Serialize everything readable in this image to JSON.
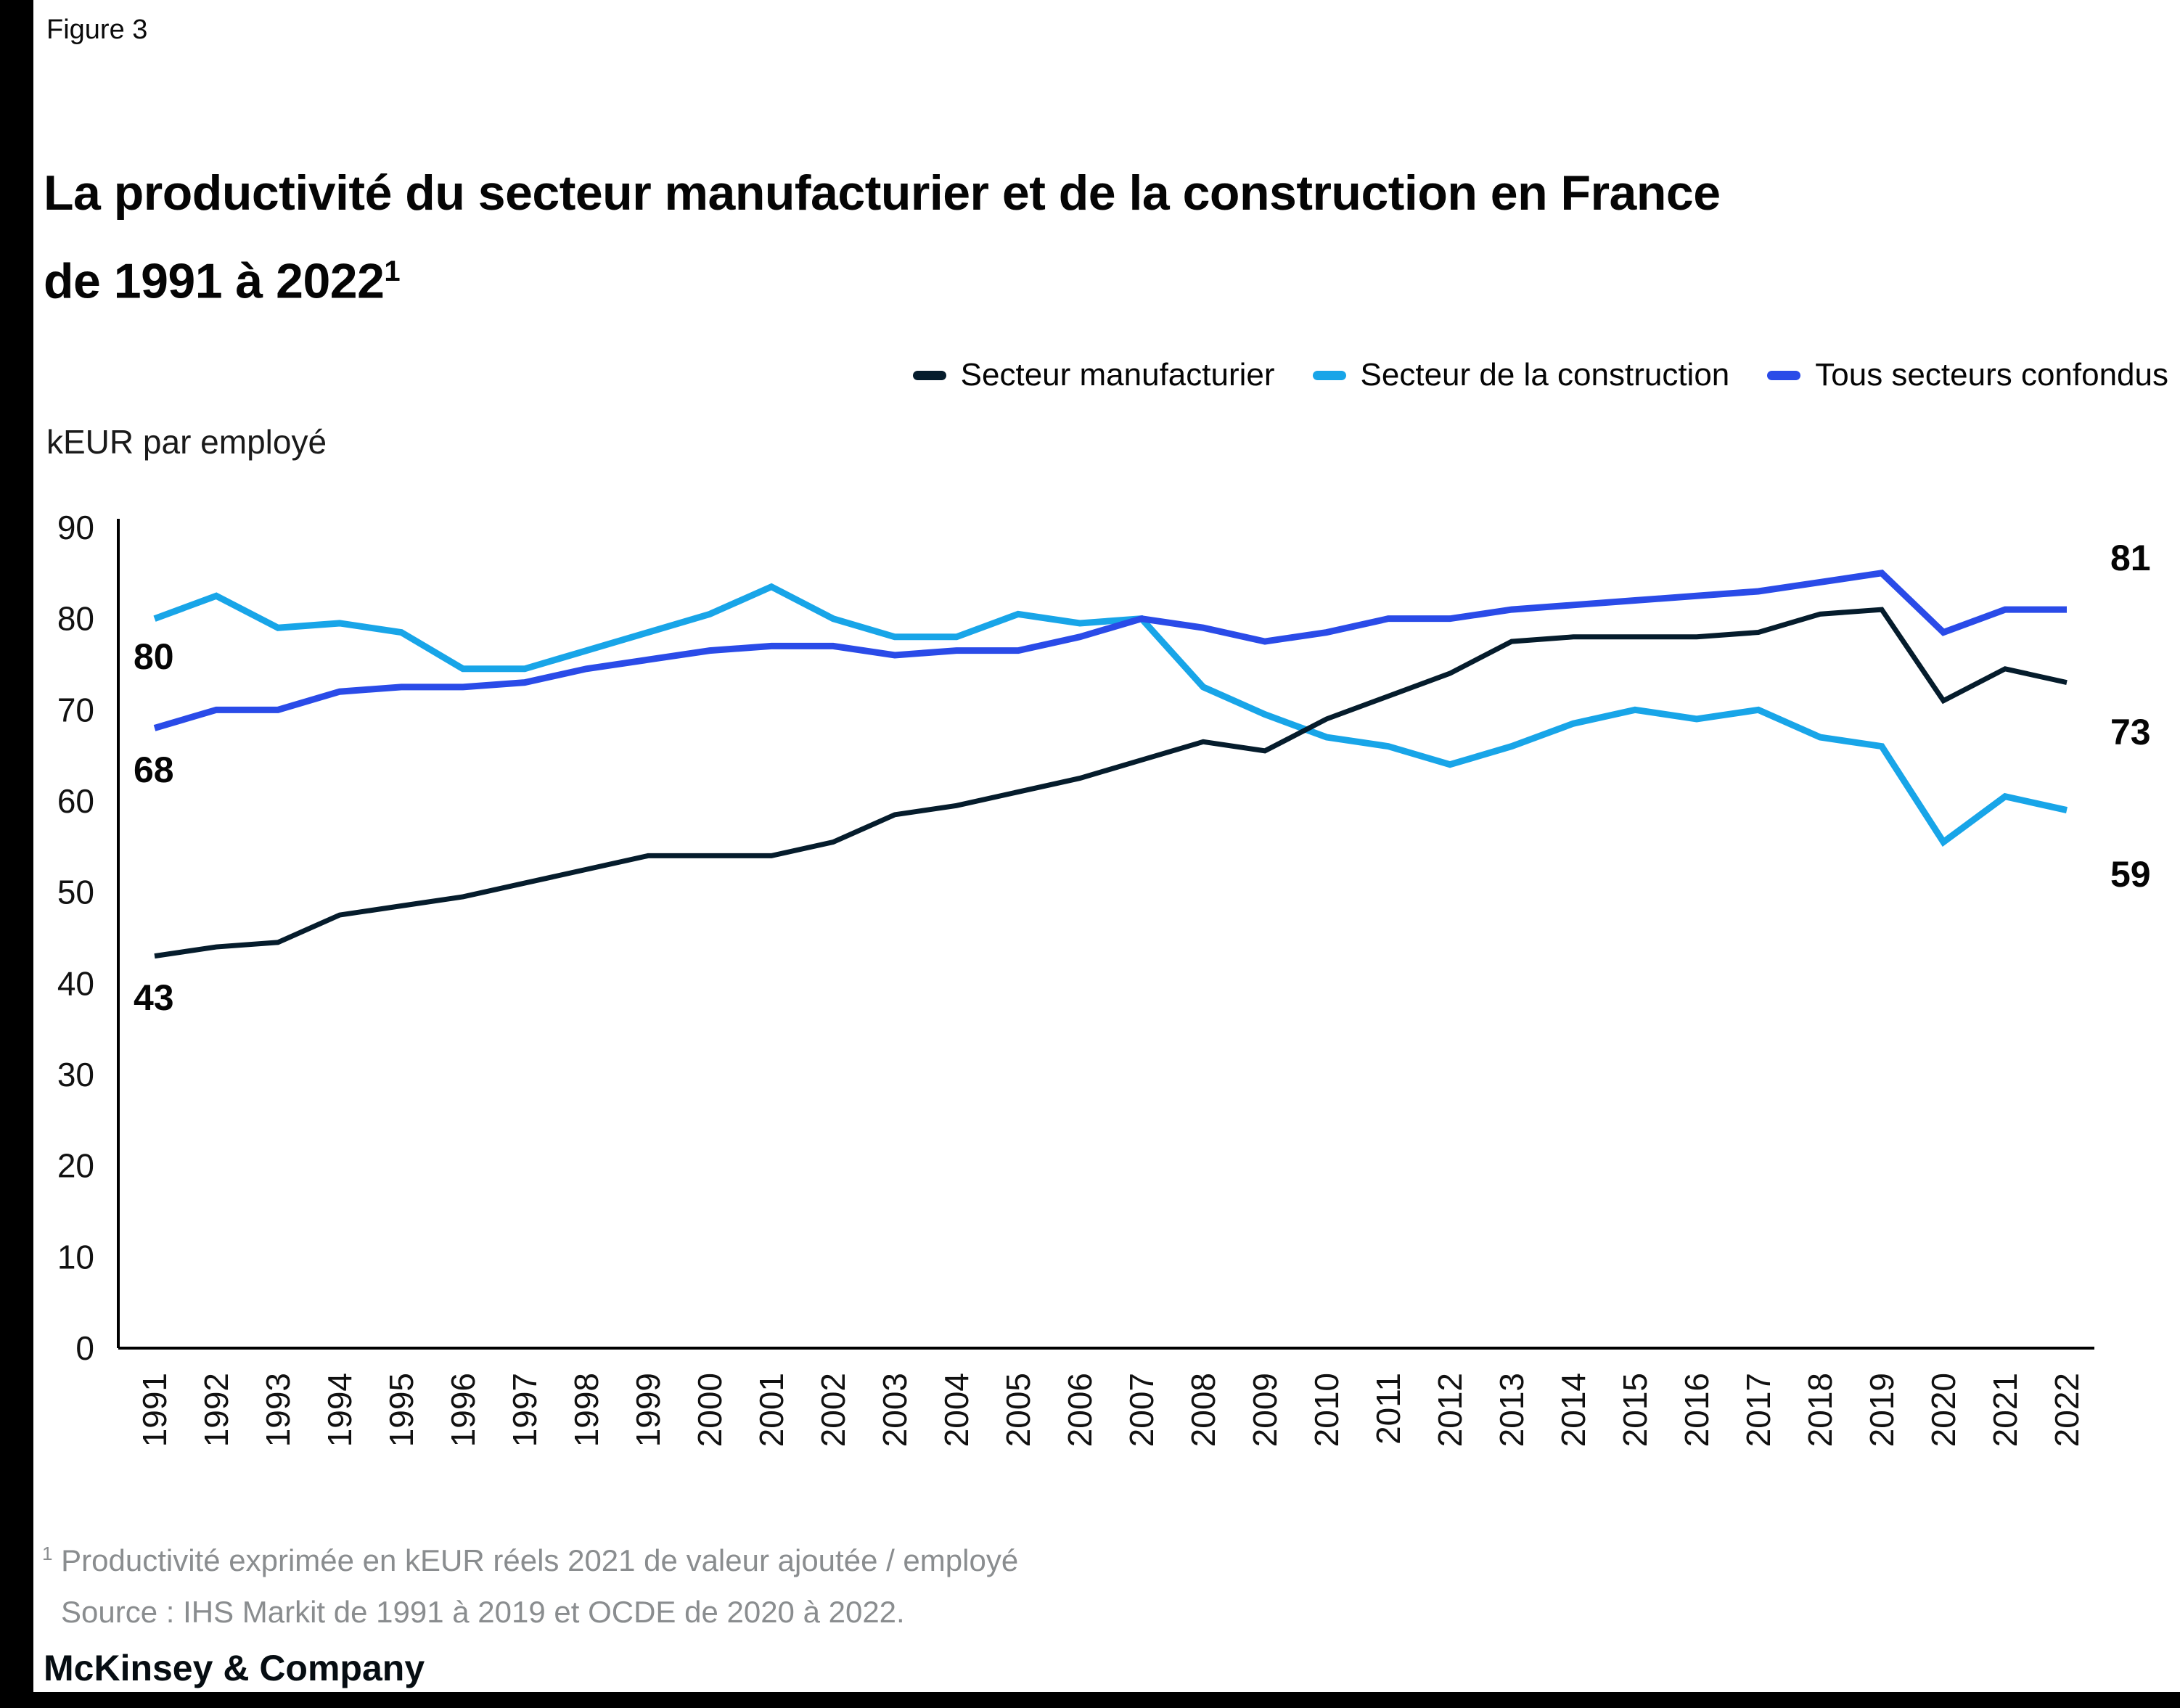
{
  "figure_label": "Figure 3",
  "header": {
    "title_line1": "La productivité du secteur manufacturier et de la construction en France",
    "title_line2": "de 1991 à 2022",
    "title_sup": "1"
  },
  "footer": {
    "footnote_sup": "1",
    "footnote_text": "Productivité exprimée en kEUR réels 2021 de valeur ajoutée / employé",
    "source_text": "Source : IHS Markit de 1991 à 2019 et OCDE de 2020 à 2022.",
    "brand": "McKinsey & Company"
  },
  "chart_data": {
    "type": "line",
    "ylabel": "kEUR par employé",
    "ylim": [
      0,
      90
    ],
    "y_ticks": [
      90,
      80,
      70,
      60,
      50,
      40,
      30,
      20,
      10,
      0
    ],
    "grid": false,
    "legend_position": "top-right",
    "years": [
      1991,
      1992,
      1993,
      1994,
      1995,
      1996,
      1997,
      1998,
      1999,
      2000,
      2001,
      2002,
      2003,
      2004,
      2005,
      2006,
      2007,
      2008,
      2009,
      2010,
      2011,
      2012,
      2013,
      2014,
      2015,
      2016,
      2017,
      2018,
      2019,
      2020,
      2021,
      2022
    ],
    "series": [
      {
        "name": "Secteur manufacturier",
        "color": "#051c2c",
        "start_label": "43",
        "end_label": "73",
        "values": [
          43,
          44,
          44.5,
          47.5,
          48.5,
          49.5,
          51,
          52.5,
          54,
          54,
          54,
          55.5,
          58.5,
          59.5,
          61,
          62.5,
          64.5,
          66.5,
          65.5,
          69,
          71.5,
          74,
          77.5,
          78,
          78,
          78,
          78.5,
          80.5,
          81,
          71,
          74.5,
          73
        ]
      },
      {
        "name": "Secteur de la construction",
        "color": "#18a5e8",
        "start_label": "80",
        "end_label": "59",
        "values": [
          80,
          82.5,
          79,
          79.5,
          78.5,
          74.5,
          74.5,
          76.5,
          78.5,
          80.5,
          83.5,
          80,
          78,
          78,
          80.5,
          79.5,
          80,
          72.5,
          69.5,
          67,
          66,
          64,
          66,
          68.5,
          70,
          69,
          70,
          67,
          66,
          55.5,
          60.5,
          59
        ]
      },
      {
        "name": "Tous secteurs confondus",
        "color": "#2a4be8",
        "start_label": "68",
        "end_label": "81",
        "values": [
          68,
          70,
          70,
          72,
          72.5,
          72.5,
          73,
          74.5,
          75.5,
          76.5,
          77,
          77,
          76,
          76.5,
          76.5,
          78,
          80,
          79,
          77.5,
          78.5,
          80,
          80,
          81,
          81.5,
          82,
          82.5,
          83,
          84,
          85,
          78.5,
          81,
          81
        ]
      }
    ]
  }
}
